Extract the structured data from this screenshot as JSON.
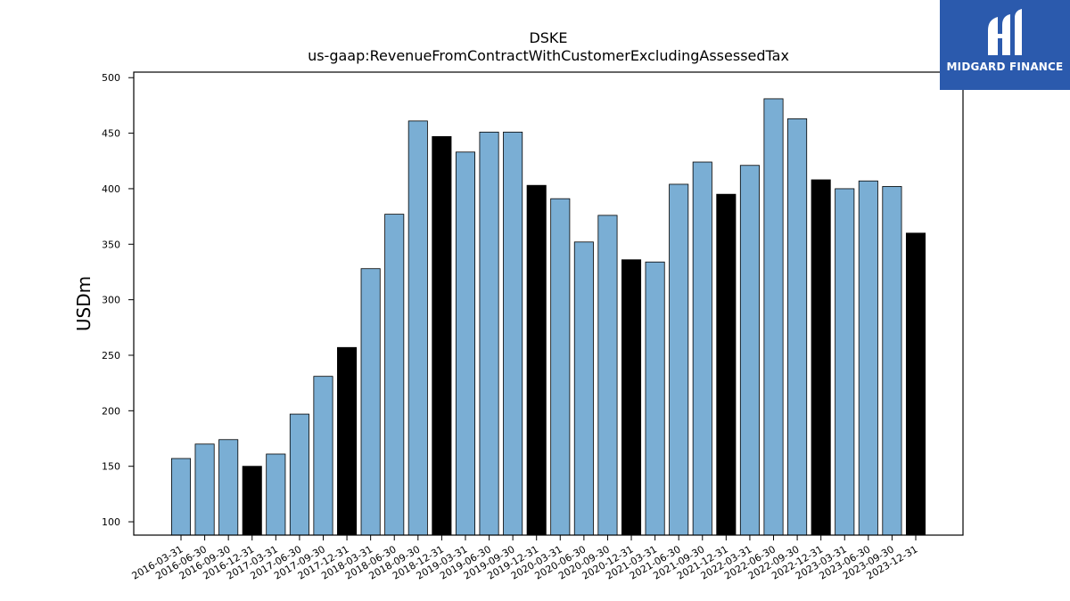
{
  "chart_data": {
    "type": "bar",
    "title": "DSKE",
    "subtitle": "us-gaap:RevenueFromContractWithCustomerExcludingAssessedTax",
    "xlabel": "",
    "ylabel": "USDm",
    "ylim": [
      88,
      505
    ],
    "yticks": [
      100,
      150,
      200,
      250,
      300,
      350,
      400,
      450,
      500
    ],
    "categories": [
      "2016-03-31",
      "2016-06-30",
      "2016-09-30",
      "2016-12-31",
      "2017-03-31",
      "2017-06-30",
      "2017-09-30",
      "2017-12-31",
      "2018-03-31",
      "2018-06-30",
      "2018-09-30",
      "2018-12-31",
      "2019-03-31",
      "2019-06-30",
      "2019-09-30",
      "2019-12-31",
      "2020-03-31",
      "2020-06-30",
      "2020-09-30",
      "2020-12-31",
      "2021-03-31",
      "2021-06-30",
      "2021-09-30",
      "2021-12-31",
      "2022-03-31",
      "2022-06-30",
      "2022-09-30",
      "2022-12-31",
      "2023-03-31",
      "2023-06-30",
      "2023-09-30",
      "2023-12-31"
    ],
    "values": [
      157,
      170,
      174,
      150,
      161,
      197,
      231,
      257,
      328,
      377,
      461,
      447,
      433,
      451,
      451,
      403,
      391,
      352,
      376,
      336,
      334,
      404,
      424,
      395,
      421,
      481,
      463,
      408,
      400,
      407,
      402,
      360
    ],
    "colors": {
      "quarter": "#7aaed4",
      "year_end": "#000000",
      "edge": "#000000"
    },
    "grid": false,
    "legend": "none"
  },
  "logo": {
    "text": "MIDGARD FINANCE"
  }
}
